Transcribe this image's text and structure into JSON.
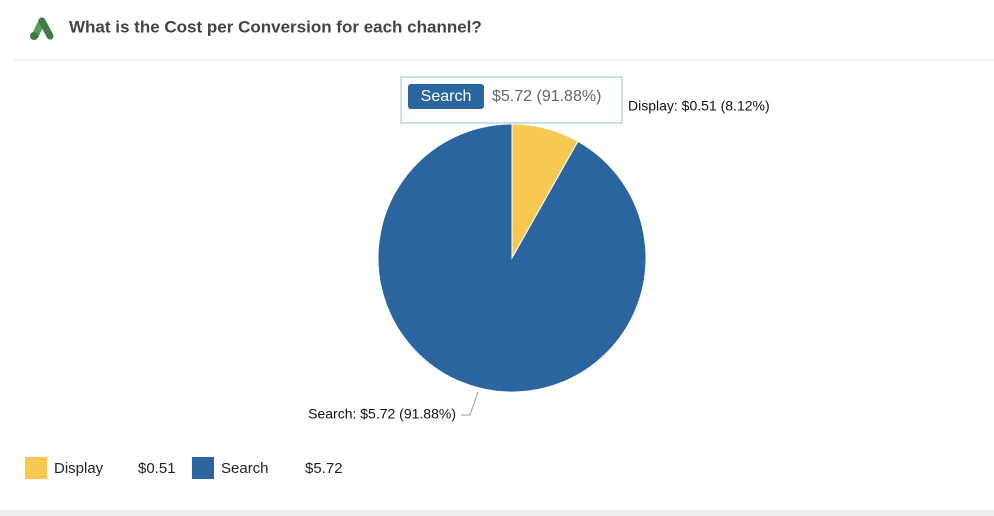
{
  "chart_data": {
    "type": "pie",
    "title": "What is the Cost per Conversion for each channel?",
    "categories": [
      "Display",
      "Search"
    ],
    "values": [
      0.51,
      5.72
    ],
    "value_labels": [
      "Display: $0.51 (8.12%)",
      "Search: $5.72 (91.88%)"
    ],
    "legend_value_labels": [
      "$0.51",
      "$5.72"
    ],
    "colors": [
      "#f7c952",
      "#2a65a0"
    ],
    "tooltip": {
      "label": "Search",
      "value": "$5.72 (91.88%)"
    }
  }
}
